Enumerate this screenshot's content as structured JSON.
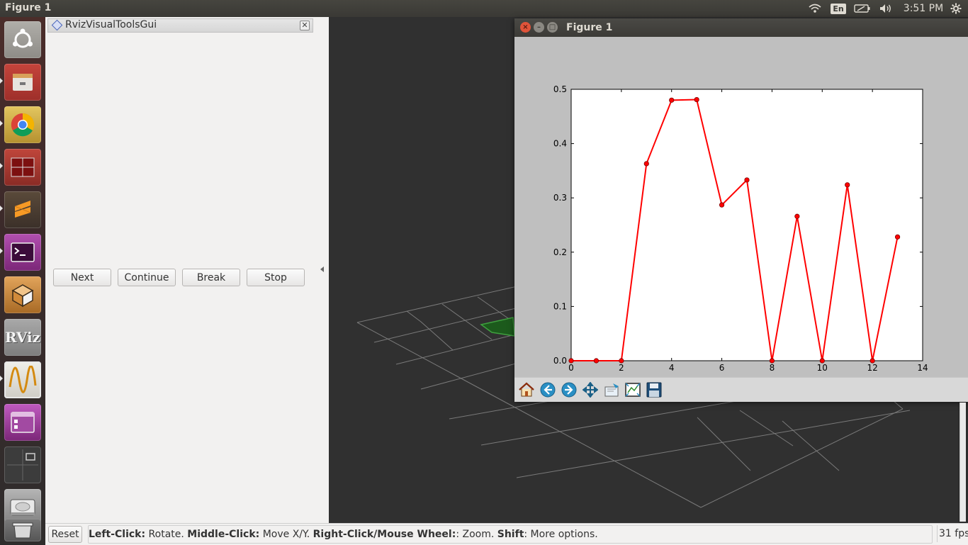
{
  "topbar": {
    "title": "Figure 1",
    "lang": "En",
    "clock": "3:51 PM"
  },
  "launcher": {
    "items": [
      {
        "name": "ubuntu-dash-icon"
      },
      {
        "name": "files-icon"
      },
      {
        "name": "chrome-icon"
      },
      {
        "name": "terminal-split-icon"
      },
      {
        "name": "sublime-text-icon"
      },
      {
        "name": "terminal-icon"
      },
      {
        "name": "gazebo-icon",
        "label": ""
      },
      {
        "name": "rviz-icon",
        "label": "RViz"
      },
      {
        "name": "plot-wave-icon"
      },
      {
        "name": "app-window-icon"
      },
      {
        "name": "workspace-switcher-icon"
      },
      {
        "name": "disk-icon"
      },
      {
        "name": "trash-icon"
      }
    ]
  },
  "panel": {
    "title": "RvizVisualToolsGui",
    "buttons": {
      "next": "Next",
      "continue": "Continue",
      "break": "Break",
      "stop": "Stop"
    }
  },
  "figure": {
    "window_title": "Figure 1"
  },
  "chart_data": {
    "type": "line",
    "title": "",
    "xlabel": "",
    "ylabel": "",
    "x": [
      0,
      1,
      2,
      3,
      4,
      5,
      6,
      7,
      8,
      9,
      10,
      11,
      12,
      13
    ],
    "series": [
      {
        "values": [
          0.0,
          0.0,
          0.0,
          0.363,
          0.48,
          0.481,
          0.287,
          0.333,
          0.0,
          0.266,
          0.0,
          0.324,
          0.0,
          0.228
        ],
        "color": "#ff0000",
        "marker": "circle"
      }
    ],
    "xlim": [
      0,
      14
    ],
    "ylim": [
      0.0,
      0.5
    ],
    "xticks": [
      "0",
      "2",
      "4",
      "6",
      "8",
      "10",
      "12",
      "14"
    ],
    "yticks": [
      "0.0",
      "0.1",
      "0.2",
      "0.3",
      "0.4",
      "0.5"
    ],
    "grid": false
  },
  "statusbar": {
    "reset": "Reset",
    "hint_parts": [
      {
        "bold": "Left-Click:",
        "text": " Rotate. "
      },
      {
        "bold": "Middle-Click:",
        "text": " Move X/Y. "
      },
      {
        "bold": "Right-Click/Mouse Wheel:",
        "text": ": Zoom. "
      },
      {
        "bold": "Shift",
        "text": ": More options."
      }
    ],
    "fps": "31 fps"
  },
  "colors": {
    "line": "#ff0000",
    "grid3d": "#7a7a7a",
    "plane": "#1c5a1c"
  }
}
